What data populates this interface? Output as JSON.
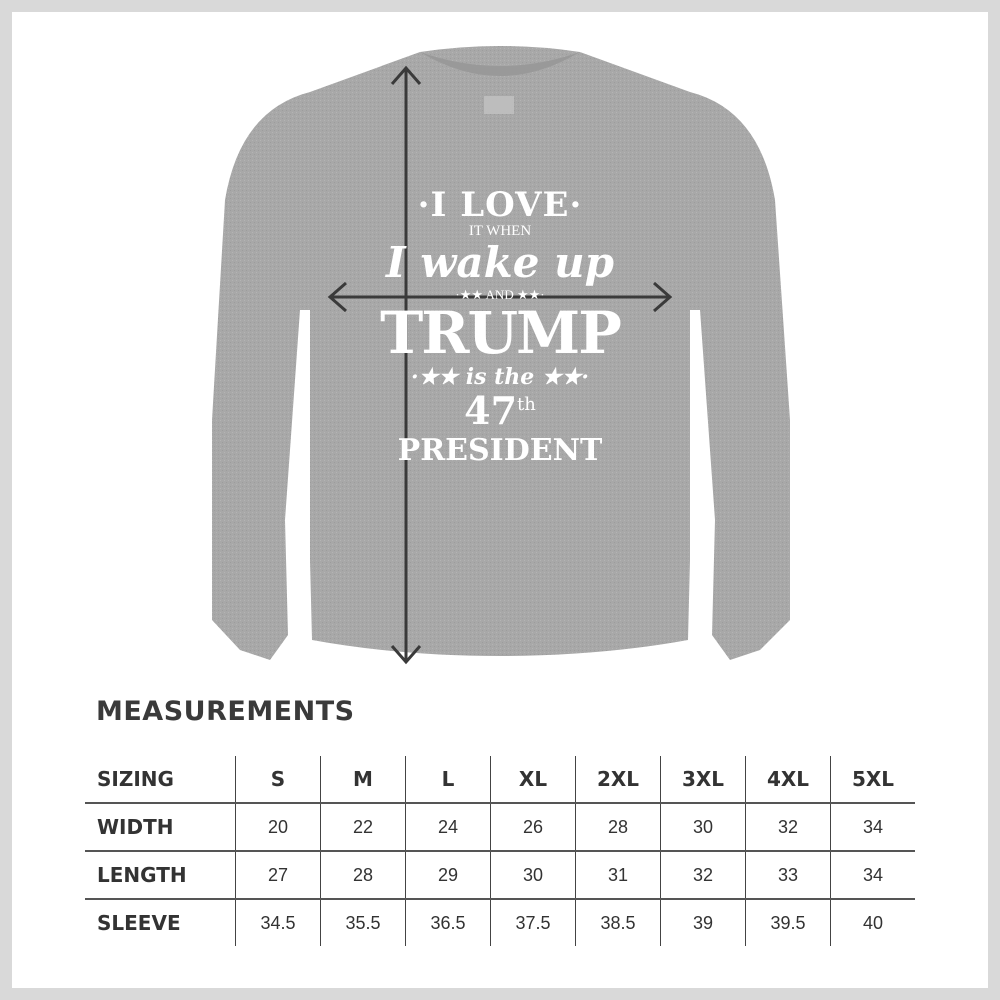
{
  "product": {
    "print_lines": {
      "line1": "·I LOVE·",
      "line2": "IT WHEN",
      "line3": "I wake up",
      "line4": "·★★ AND ★★·",
      "line5": "TRUMP",
      "line6": "·★★ is the ★★·",
      "line7": "47",
      "line7_suffix": "th",
      "line8": "PRESIDENT"
    },
    "color": "#a9a9a9",
    "arrow_color": "#3a3a3a"
  },
  "measurements": {
    "title": "MEASUREMENTS",
    "header_label": "SIZING",
    "sizes": [
      "S",
      "M",
      "L",
      "XL",
      "2XL",
      "3XL",
      "4XL",
      "5XL"
    ],
    "rows": [
      {
        "label": "WIDTH",
        "values": [
          "20",
          "22",
          "24",
          "26",
          "28",
          "30",
          "32",
          "34"
        ]
      },
      {
        "label": "LENGTH",
        "values": [
          "27",
          "28",
          "29",
          "30",
          "31",
          "32",
          "33",
          "34"
        ]
      },
      {
        "label": "SLEEVE",
        "values": [
          "34.5",
          "35.5",
          "36.5",
          "37.5",
          "38.5",
          "39",
          "39.5",
          "40"
        ]
      }
    ]
  }
}
